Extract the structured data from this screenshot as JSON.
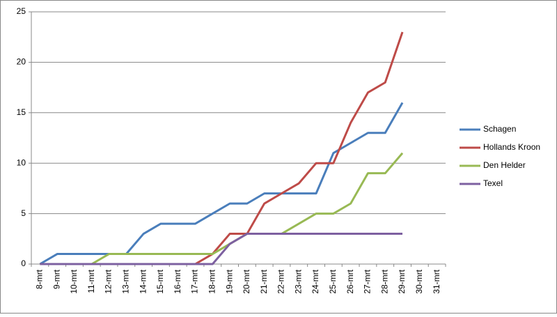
{
  "chart_data": {
    "type": "line",
    "categories": [
      "8-mrt",
      "9-mrt",
      "10-mrt",
      "11-mrt",
      "12-mrt",
      "13-mrt",
      "14-mrt",
      "15-mrt",
      "16-mrt",
      "17-mrt",
      "18-mrt",
      "19-mrt",
      "20-mrt",
      "21-mrt",
      "22-mrt",
      "23-mrt",
      "24-mrt",
      "25-mrt",
      "26-mrt",
      "27-mrt",
      "28-mrt",
      "29-mrt",
      "30-mrt",
      "31-mrt"
    ],
    "series": [
      {
        "name": "Schagen",
        "color": "#4a7ebb",
        "values": [
          0,
          1,
          1,
          1,
          1,
          1,
          3,
          4,
          4,
          4,
          5,
          6,
          6,
          7,
          7,
          7,
          7,
          11,
          12,
          13,
          13,
          16,
          null,
          null
        ]
      },
      {
        "name": "Hollands Kroon",
        "color": "#be4b48",
        "values": [
          0,
          0,
          0,
          0,
          0,
          0,
          0,
          0,
          0,
          0,
          1,
          3,
          3,
          6,
          7,
          8,
          10,
          10,
          14,
          17,
          18,
          23,
          null,
          null
        ]
      },
      {
        "name": "Den Helder",
        "color": "#98b954",
        "values": [
          0,
          0,
          0,
          0,
          1,
          1,
          1,
          1,
          1,
          1,
          1,
          2,
          3,
          3,
          3,
          4,
          5,
          5,
          6,
          9,
          9,
          11,
          null,
          null
        ]
      },
      {
        "name": "Texel",
        "color": "#7d60a0",
        "values": [
          0,
          0,
          0,
          0,
          0,
          0,
          0,
          0,
          0,
          0,
          0,
          2,
          3,
          3,
          3,
          3,
          3,
          3,
          3,
          3,
          3,
          3,
          null,
          null
        ]
      }
    ],
    "ylim": [
      0,
      25
    ],
    "yticks": [
      0,
      5,
      10,
      15,
      20,
      25
    ],
    "grid": true,
    "legend": "right"
  }
}
